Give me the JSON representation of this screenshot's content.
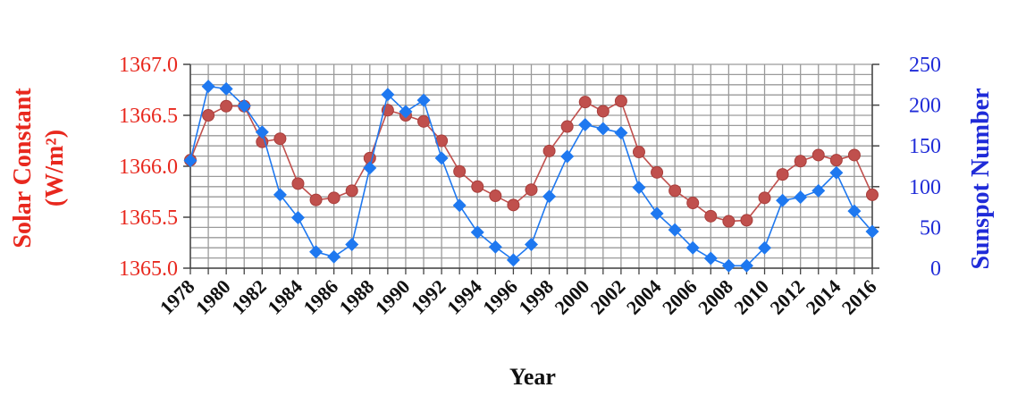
{
  "chart_data": {
    "type": "line",
    "xlabel": "Year",
    "ylabel_left": "Solar Constant",
    "ylabel_left_unit": "(W/m²)",
    "ylabel_right": "Sunspot Number",
    "x": [
      1978,
      1979,
      1980,
      1981,
      1982,
      1983,
      1984,
      1985,
      1986,
      1987,
      1988,
      1989,
      1990,
      1991,
      1992,
      1993,
      1994,
      1995,
      1996,
      1997,
      1998,
      1999,
      2000,
      2001,
      2002,
      2003,
      2004,
      2005,
      2006,
      2007,
      2008,
      2009,
      2010,
      2011,
      2012,
      2013,
      2014,
      2015,
      2016
    ],
    "x_tick_labels": [
      "1978",
      "1980",
      "1982",
      "1984",
      "1986",
      "1988",
      "1990",
      "1992",
      "1994",
      "1996",
      "1998",
      "2000",
      "2002",
      "2004",
      "2006",
      "2008",
      "2010",
      "2012",
      "2014",
      "2016"
    ],
    "y_left_range": [
      1365.0,
      1367.0
    ],
    "y_left_ticks": [
      "1365.0",
      "1365.5",
      "1366.0",
      "1366.5",
      "1367.0"
    ],
    "y_right_range": [
      0,
      250
    ],
    "y_right_ticks": [
      "0",
      "50",
      "100",
      "150",
      "200",
      "250"
    ],
    "grid": true,
    "series": [
      {
        "axis": "left",
        "color": "#c0504d",
        "marker": "circle",
        "values": [
          1366.06,
          1366.5,
          1366.59,
          1366.59,
          1366.24,
          1366.27,
          1365.83,
          1365.67,
          1365.69,
          1365.76,
          1366.08,
          1366.55,
          1366.5,
          1366.44,
          1366.25,
          1365.95,
          1365.8,
          1365.71,
          1365.62,
          1365.77,
          1366.15,
          1366.39,
          1366.63,
          1366.54,
          1366.64,
          1366.14,
          1365.94,
          1365.76,
          1365.64,
          1365.51,
          1365.46,
          1365.47,
          1365.69,
          1365.92,
          1366.05,
          1366.11,
          1366.06,
          1366.11,
          1365.72
        ]
      },
      {
        "axis": "right",
        "color": "#1e78f0",
        "marker": "diamond",
        "values": [
          132,
          223,
          220,
          199,
          167,
          90,
          62,
          20,
          14,
          29,
          123,
          213,
          192,
          206,
          135,
          77,
          44,
          26,
          10,
          29,
          88,
          137,
          176,
          171,
          166,
          99,
          67,
          47,
          25,
          12,
          3,
          3,
          25,
          83,
          87,
          95,
          117,
          70,
          45
        ]
      }
    ]
  }
}
